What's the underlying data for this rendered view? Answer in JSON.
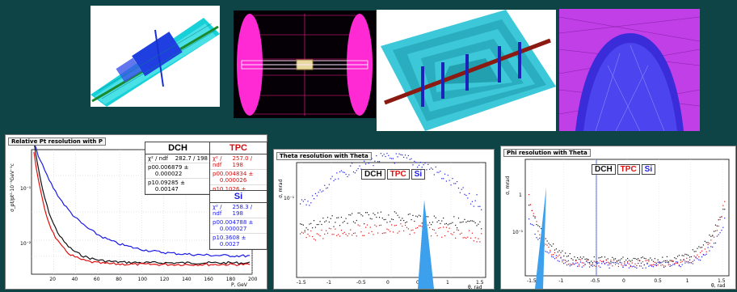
{
  "geometry_images": [
    {
      "name": "detector-view-1"
    },
    {
      "name": "detector-view-2"
    },
    {
      "name": "detector-view-3"
    },
    {
      "name": "detector-view-4"
    }
  ],
  "chart1": {
    "title": "Relative Pt resolution with P",
    "ylabel": "σ_pt/pt²·10⁻³GeV⁻¹c",
    "xlabel": "P, GeV",
    "xticks": [
      "20",
      "40",
      "60",
      "80",
      "100",
      "120",
      "140",
      "160",
      "180",
      "200"
    ],
    "yticks": [
      "10⁻¹",
      "10⁻²"
    ],
    "legends": {
      "dch": {
        "title": "DCH",
        "chi": "χ² / ndf",
        "chi_val": "282.7 / 198",
        "p0": "p0",
        "p0_val": "0.006879 ± 0.000022",
        "p1": "p1",
        "p1_val": "0.09285 ± 0.00147"
      },
      "tpc": {
        "title": "TPC",
        "chi": "χ² / ndf",
        "chi_val": "257.0 / 198",
        "p0": "p0",
        "p0_val": "0.004834 ± 0.000026",
        "p1": "p1",
        "p1_val": "0.1026 ± 0.0017"
      },
      "si": {
        "title": "Si",
        "chi": "χ² / ndf",
        "chi_val": "258.3 / 198",
        "p0": "p0",
        "p0_val": "0.004788 ± 0.000027",
        "p1": "p1",
        "p1_val": "0.3608 ± 0.0027"
      }
    },
    "colors": {
      "dch": "#111111",
      "tpc": "#e01010",
      "si": "#1a1ae6"
    }
  },
  "chart2": {
    "title": "Theta resolution with Theta",
    "ylabel": "σ, mrad",
    "xlabel": "θ, rad",
    "xticks": [
      "-1.5",
      "-1",
      "-0.5",
      "0",
      "0.5",
      "1",
      "1.5"
    ],
    "yticks": [
      "10⁻¹"
    ],
    "legend": [
      "DCH",
      "TPC",
      "Si"
    ]
  },
  "chart3": {
    "title": "Phi resolution with Theta",
    "ylabel": "σ, mrad",
    "xlabel": "θ, rad",
    "xticks": [
      "-1.5",
      "-1",
      "-0.5",
      "0",
      "0.5",
      "1",
      "1.5"
    ],
    "yticks": [
      "1",
      "10⁻¹"
    ],
    "legend": [
      "DCH",
      "TPC",
      "Si"
    ]
  }
}
